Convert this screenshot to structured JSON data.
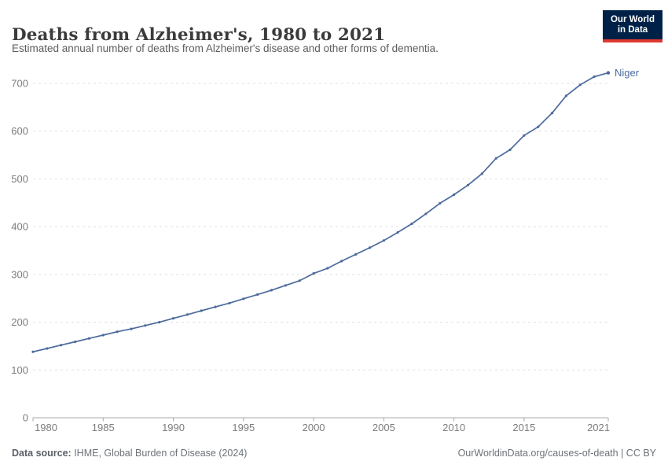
{
  "header": {
    "title": "Deaths from Alzheimer's, 1980 to 2021",
    "subtitle": "Estimated annual number of deaths from Alzheimer's disease and other forms of dementia.",
    "logo": {
      "line1": "Our World",
      "line2": "in Data",
      "bg_color": "#002147",
      "accent_color": "#E0392F"
    }
  },
  "chart_data": {
    "type": "line",
    "title": "Deaths from Alzheimer's, 1980 to 2021",
    "xlabel": "",
    "ylabel": "",
    "xlim": [
      1980,
      2021
    ],
    "ylim": [
      0,
      700
    ],
    "grid": "horizontal-dashed",
    "legend_position": "end-of-line-label",
    "x_ticks": [
      1980,
      1985,
      1990,
      1995,
      2000,
      2005,
      2010,
      2015,
      2021
    ],
    "y_ticks": [
      0,
      100,
      200,
      300,
      400,
      500,
      600,
      700
    ],
    "series": [
      {
        "name": "Niger",
        "color": "#4C6A9C",
        "x": [
          1980,
          1981,
          1982,
          1983,
          1984,
          1985,
          1986,
          1987,
          1988,
          1989,
          1990,
          1991,
          1992,
          1993,
          1994,
          1995,
          1996,
          1997,
          1998,
          1999,
          2000,
          2001,
          2002,
          2003,
          2004,
          2005,
          2006,
          2007,
          2008,
          2009,
          2010,
          2011,
          2012,
          2013,
          2014,
          2015,
          2016,
          2017,
          2018,
          2019,
          2020,
          2021
        ],
        "values": [
          138,
          145,
          152,
          159,
          166,
          173,
          180,
          186,
          193,
          200,
          208,
          216,
          224,
          232,
          240,
          249,
          258,
          267,
          277,
          287,
          302,
          313,
          328,
          342,
          356,
          371,
          388,
          406,
          427,
          449,
          467,
          487,
          511,
          543,
          561,
          591,
          609,
          638,
          674,
          697,
          714,
          722
        ]
      }
    ],
    "colors": {
      "grid": "#e0e0e0",
      "axis": "#a8a8a8",
      "tick_label": "#7c7c7c"
    }
  },
  "footer": {
    "source_label": "Data source:",
    "source_text": " IHME, Global Burden of Disease (2024)",
    "credit": "OurWorldinData.org/causes-of-death | CC BY"
  }
}
